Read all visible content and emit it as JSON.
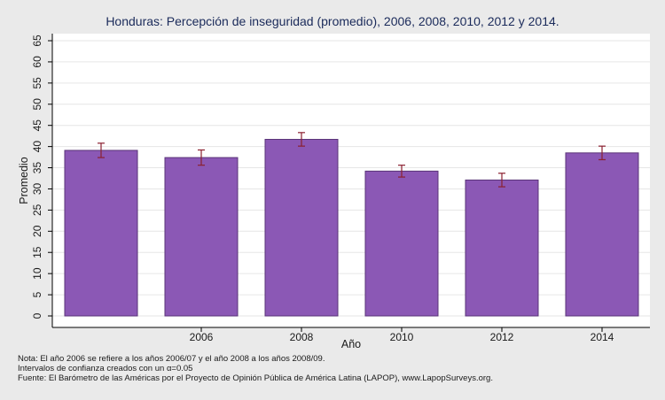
{
  "chart_data": {
    "type": "bar",
    "title": "Honduras: Percepción de inseguridad (promedio), 2006, 2008, 2010, 2012 y 2014.",
    "xlabel": "Año",
    "ylabel": "Promedio",
    "ylim": [
      0,
      65
    ],
    "yticks": [
      0,
      5,
      10,
      15,
      20,
      25,
      30,
      35,
      40,
      45,
      50,
      55,
      60,
      65
    ],
    "grid": true,
    "categories": [
      "",
      "2006",
      "2008",
      "2010",
      "2012",
      "2014"
    ],
    "values": [
      39.1,
      37.4,
      41.7,
      34.2,
      32.1,
      38.5
    ],
    "ci_low": [
      37.4,
      35.6,
      40.1,
      32.8,
      30.5,
      36.9
    ],
    "ci_high": [
      40.8,
      39.2,
      43.3,
      35.6,
      33.7,
      40.1
    ],
    "colors": {
      "bar_fill": "#8b58b5",
      "bar_stroke": "#5a3378",
      "error_bar": "#8b2030",
      "plot_bg": "#ffffff",
      "outer_bg": "#eaeaea",
      "grid": "#e6e6e6",
      "title": "#1a2a5a"
    }
  },
  "notes": {
    "line1": "Nota: El año 2006 se refiere a los años 2006/07 y el año 2008 a los años 2008/09.",
    "line2": "Intervalos de confianza creados con un α=0.05",
    "line3": "Fuente: El Barómetro de las Américas por el Proyecto de Opinión Pública de América Latina (LAPOP), www.LapopSurveys.org."
  }
}
